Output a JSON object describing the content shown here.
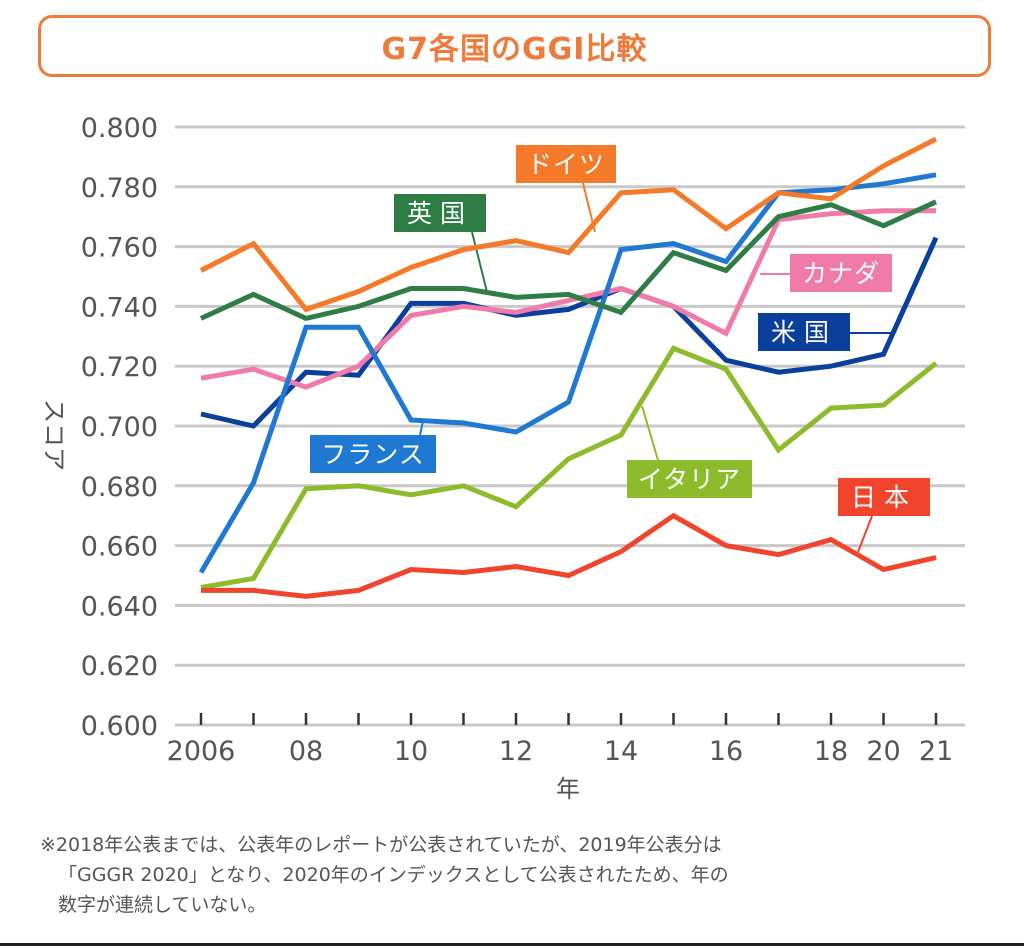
{
  "title": "G7各国のGGI比較",
  "chart_data": {
    "type": "line",
    "title": "G7各国のGGI比較",
    "xlabel": "年",
    "ylabel": "スコア",
    "ylim": [
      0.6,
      0.8
    ],
    "yticks": [
      0.6,
      0.62,
      0.64,
      0.66,
      0.68,
      0.7,
      0.72,
      0.74,
      0.76,
      0.78,
      0.8
    ],
    "ytick_labels": [
      "0.600",
      "0.620",
      "0.640",
      "0.660",
      "0.680",
      "0.700",
      "0.720",
      "0.740",
      "0.760",
      "0.780",
      "0.800"
    ],
    "x": [
      2006,
      2007,
      2008,
      2009,
      2010,
      2011,
      2012,
      2013,
      2014,
      2015,
      2016,
      2017,
      2018,
      2020,
      2021
    ],
    "x_tick_labels": [
      "2006",
      "",
      "08",
      "",
      "10",
      "",
      "12",
      "",
      "14",
      "",
      "16",
      "",
      "18",
      "20",
      "21"
    ],
    "grid": "horizontal",
    "legend": "inline-labels",
    "series": [
      {
        "name": "ドイツ",
        "color": "#f47a2a",
        "label_color": "#f47a2a",
        "values": [
          0.752,
          0.761,
          0.739,
          0.745,
          0.753,
          0.759,
          0.762,
          0.758,
          0.778,
          0.779,
          0.766,
          0.778,
          0.776,
          0.787,
          0.796
        ]
      },
      {
        "name": "フランス",
        "color": "#1f78d1",
        "label_color": "#1f78d1",
        "values": [
          0.651,
          0.681,
          0.733,
          0.733,
          0.702,
          0.701,
          0.698,
          0.708,
          0.759,
          0.761,
          0.755,
          0.778,
          0.779,
          0.781,
          0.784
        ]
      },
      {
        "name": "英国",
        "color": "#2e7d45",
        "label_color": "#2e7d45",
        "values": [
          0.736,
          0.744,
          0.736,
          0.74,
          0.746,
          0.746,
          0.743,
          0.744,
          0.738,
          0.758,
          0.752,
          0.77,
          0.774,
          0.767,
          0.775
        ]
      },
      {
        "name": "カナダ",
        "color": "#f07aa8",
        "label_color": "#f07aa8",
        "values": [
          0.716,
          0.719,
          0.713,
          0.72,
          0.737,
          0.74,
          0.738,
          0.742,
          0.746,
          0.74,
          0.731,
          0.769,
          0.771,
          0.772,
          0.772
        ]
      },
      {
        "name": "米国",
        "color": "#0a3f9c",
        "label_color": "#0a3f9c",
        "values": [
          0.704,
          0.7,
          0.718,
          0.717,
          0.741,
          0.741,
          0.737,
          0.739,
          0.746,
          0.74,
          0.722,
          0.718,
          0.72,
          0.724,
          0.763
        ]
      },
      {
        "name": "イタリア",
        "color": "#8cbc2c",
        "label_color": "#8cbc2c",
        "values": [
          0.646,
          0.649,
          0.679,
          0.68,
          0.677,
          0.68,
          0.673,
          0.689,
          0.697,
          0.726,
          0.719,
          0.692,
          0.706,
          0.707,
          0.721
        ]
      },
      {
        "name": "日本",
        "color": "#f0442c",
        "label_color": "#f0442c",
        "values": [
          0.645,
          0.645,
          0.643,
          0.645,
          0.652,
          0.651,
          0.653,
          0.65,
          0.658,
          0.67,
          0.66,
          0.657,
          0.662,
          0.652,
          0.656
        ]
      }
    ]
  },
  "footnote": {
    "lines": [
      "※2018年公表までは、公表年のレポートが公表されていたが、2019年公表分は",
      "「GGGR 2020」となり、2020年のインデックスとして公表されたため、年の",
      "数字が連続していない。"
    ]
  }
}
